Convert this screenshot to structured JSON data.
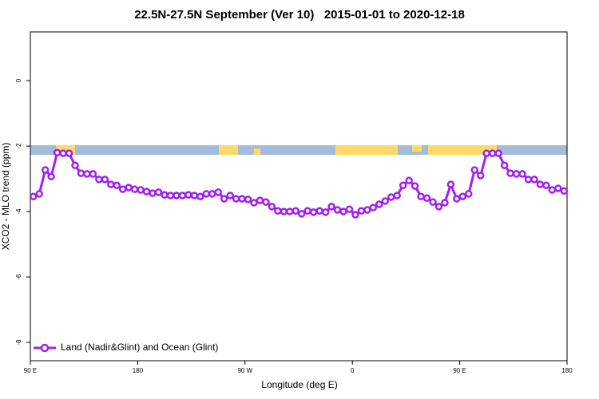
{
  "chart_data": {
    "type": "line",
    "title": "22.5N-27.5N September (Ver 10)   2015-01-01 to 2020-12-18",
    "x_label": "Longitude (deg E)",
    "y_label": "XCO2 - MLO trend (ppm)",
    "x": [
      -267.5,
      -262.5,
      -257.5,
      -252.5,
      -247.5,
      -242.5,
      -237.5,
      -232.5,
      -227.5,
      -222.5,
      -217.5,
      -212.5,
      -207.5,
      -202.5,
      -197.5,
      -192.5,
      -187.5,
      -182.5,
      -177.5,
      -172.5,
      -167.5,
      -162.5,
      -157.5,
      -152.5,
      -147.5,
      -142.5,
      -137.5,
      -132.5,
      -127.5,
      -122.5,
      -117.5,
      -112.5,
      -107.5,
      -102.5,
      -97.5,
      -92.5,
      -87.5,
      -82.5,
      -77.5,
      -72.5,
      -67.5,
      -62.5,
      -57.5,
      -52.5,
      -47.5,
      -42.5,
      -37.5,
      -32.5,
      -27.5,
      -22.5,
      -17.5,
      -12.5,
      -7.5,
      -2.5,
      2.5,
      7.5,
      12.5,
      17.5,
      22.5,
      27.5,
      32.5,
      37.5,
      42.5,
      47.5,
      52.5,
      57.5,
      62.5,
      67.5,
      72.5,
      77.5,
      82.5,
      87.5,
      92.5,
      97.5,
      102.5,
      107.5,
      112.5,
      117.5,
      122.5,
      127.5,
      132.5,
      137.5,
      142.5,
      147.5,
      152.5,
      157.5,
      162.5,
      167.5,
      172.5,
      177.5
    ],
    "series": [
      {
        "name": "Land (Nadir&Glint) and Ocean (Glint)",
        "color": "#a020f0",
        "values": [
          -3.54,
          -3.46,
          -2.73,
          -2.93,
          -2.2,
          -2.22,
          -2.22,
          -2.59,
          -2.83,
          -2.85,
          -2.85,
          -3.02,
          -3.02,
          -3.17,
          -3.2,
          -3.32,
          -3.27,
          -3.32,
          -3.34,
          -3.39,
          -3.44,
          -3.41,
          -3.49,
          -3.51,
          -3.51,
          -3.51,
          -3.49,
          -3.51,
          -3.54,
          -3.46,
          -3.46,
          -3.41,
          -3.61,
          -3.51,
          -3.61,
          -3.61,
          -3.63,
          -3.73,
          -3.66,
          -3.71,
          -3.85,
          -3.98,
          -4.0,
          -4.0,
          -3.98,
          -4.07,
          -3.98,
          -4.02,
          -3.98,
          -4.02,
          -3.85,
          -3.95,
          -4.0,
          -3.93,
          -4.1,
          -3.98,
          -3.95,
          -3.88,
          -3.78,
          -3.68,
          -3.56,
          -3.51,
          -3.2,
          -3.05,
          -3.22,
          -3.54,
          -3.59,
          -3.71,
          -3.85,
          -3.73,
          -3.17,
          -3.61,
          -3.54,
          -3.46,
          -2.73,
          -2.9,
          -2.22,
          -2.22,
          -2.22,
          -2.59,
          -2.83,
          -2.85,
          -2.85,
          -3.02,
          -3.02,
          -3.17,
          -3.2,
          -3.34,
          -3.29,
          -3.37
        ]
      }
    ],
    "xlim": [
      -270,
      180
    ],
    "xticks": [
      {
        "value": -270,
        "label": "90 E"
      },
      {
        "value": -180,
        "label": "180"
      },
      {
        "value": -90,
        "label": "90 W"
      },
      0,
      {
        "value": 90,
        "label": "90 E"
      },
      180
    ],
    "ylim": [
      -8.56,
      1.49
    ],
    "yticks": [
      0,
      -2,
      -4,
      -6,
      -8
    ],
    "grid": false,
    "legend": "bottom-left"
  }
}
